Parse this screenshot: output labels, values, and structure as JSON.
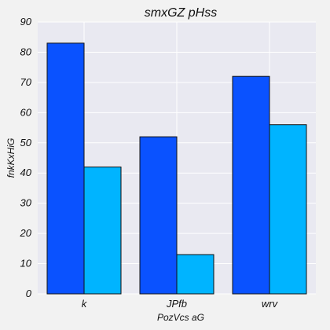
{
  "chart_data": {
    "type": "bar",
    "title": "smxGZ pHss",
    "xlabel": "PozVcs aG",
    "ylabel": "fnkKxHiG",
    "categories": [
      "k",
      "JPfb",
      "wrv"
    ],
    "series": [
      {
        "values": [
          83,
          52,
          72
        ],
        "color": "#0a52ff"
      },
      {
        "values": [
          42,
          13,
          56
        ],
        "color": "#00b4ff"
      }
    ],
    "ylim": [
      0,
      90
    ],
    "yticks": [
      0,
      10,
      20,
      30,
      40,
      50,
      60,
      70,
      80,
      90
    ],
    "grid": true,
    "legend": "none"
  },
  "colors": {
    "plot_background": "#e9e9f1",
    "page_background": "#f2f2f2",
    "grid": "#ffffff",
    "bar_edge": "#111111"
  }
}
